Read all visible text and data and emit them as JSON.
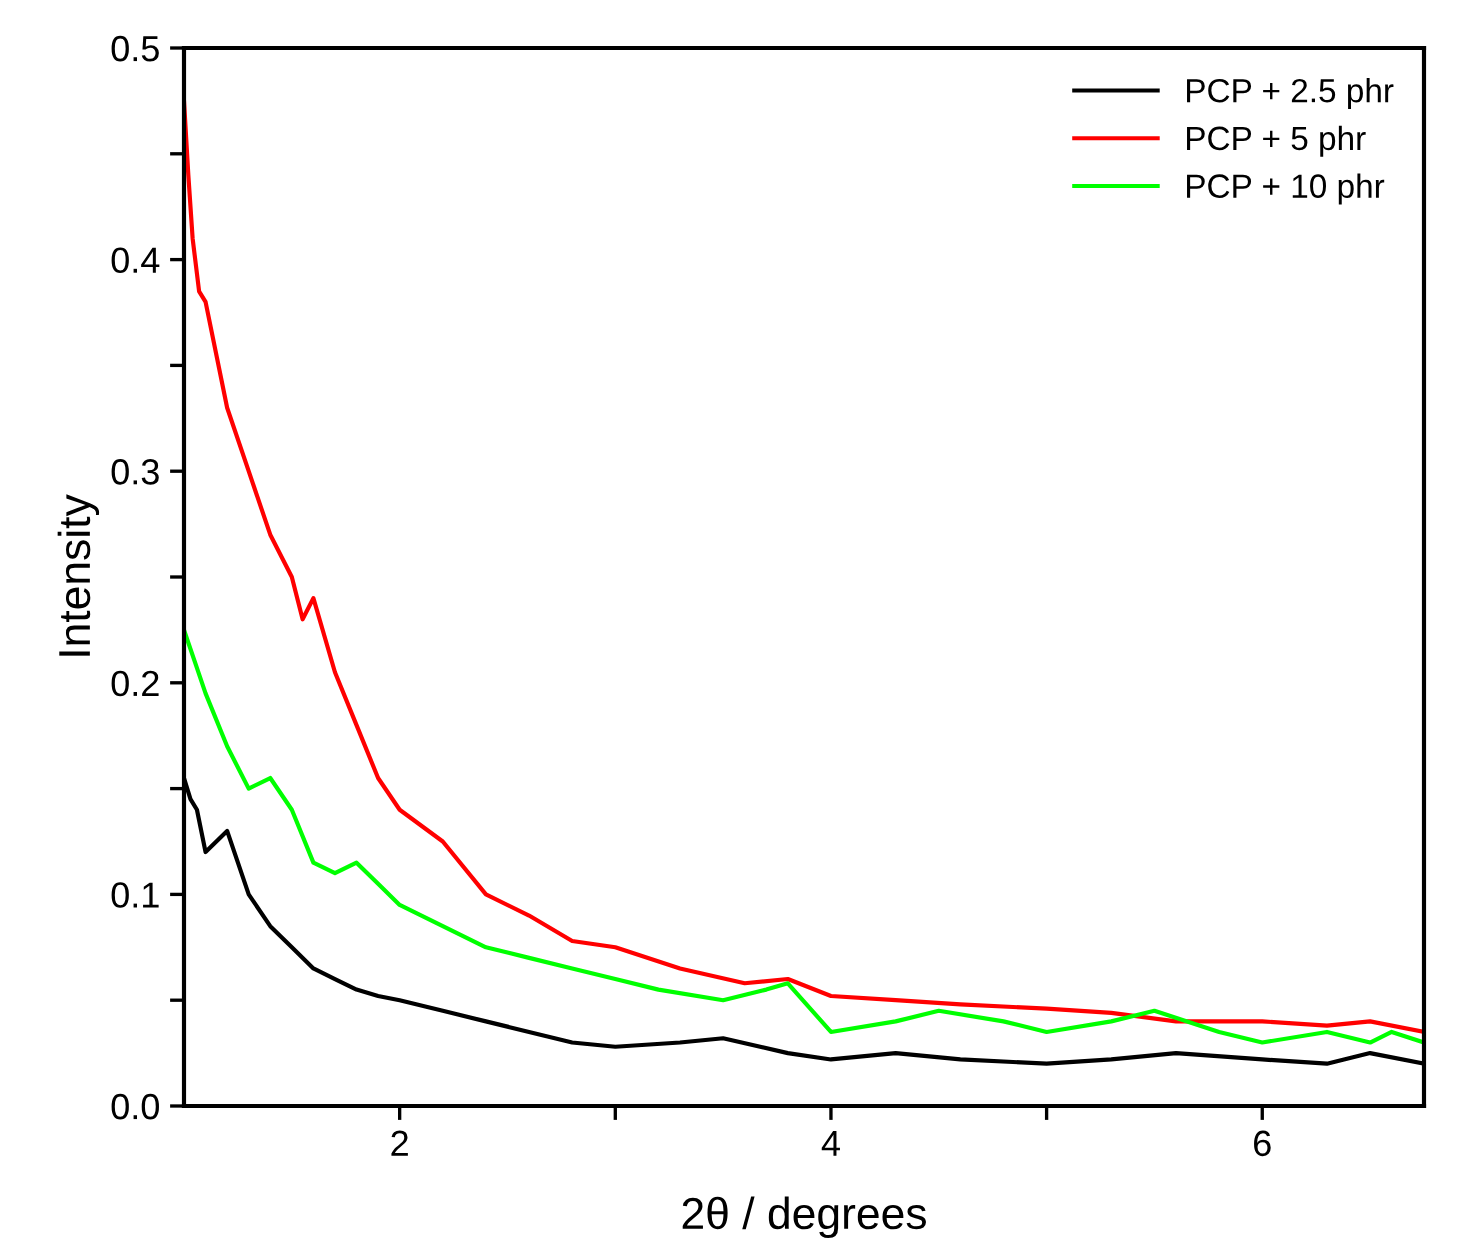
{
  "chart_data": {
    "type": "line",
    "xlabel": "2θ / degrees",
    "ylabel": "Intensity",
    "xlim": [
      1.0,
      6.75
    ],
    "xticks": [
      2,
      {
        "value": 3,
        "label": null
      },
      4,
      {
        "value": 5,
        "label": null
      },
      6
    ],
    "ylim": [
      0,
      0.5
    ],
    "yticks": [
      {
        "value": 0,
        "label": "0.0"
      },
      {
        "value": 0.05,
        "label": null
      },
      {
        "value": 0.1,
        "label": "0.1"
      },
      {
        "value": 0.15,
        "label": null
      },
      {
        "value": 0.2,
        "label": "0.2"
      },
      {
        "value": 0.25,
        "label": null
      },
      {
        "value": 0.3,
        "label": "0.3"
      },
      {
        "value": 0.35,
        "label": null
      },
      {
        "value": 0.4,
        "label": "0.4"
      },
      {
        "value": 0.45,
        "label": null
      },
      {
        "value": 0.5,
        "label": "0.5"
      }
    ],
    "grid": false,
    "legend": "top right",
    "series": [
      {
        "name": "PCP + 2.5 phr",
        "color": "#000000",
        "x": [
          1.0,
          1.03,
          1.06,
          1.1,
          1.2,
          1.3,
          1.4,
          1.5,
          1.6,
          1.7,
          1.8,
          1.9,
          2.0,
          2.2,
          2.4,
          2.6,
          2.8,
          3.0,
          3.3,
          3.5,
          3.8,
          4.0,
          4.3,
          4.6,
          5.0,
          5.3,
          5.6,
          6.0,
          6.3,
          6.5,
          6.75
        ],
        "values": [
          0.155,
          0.145,
          0.14,
          0.12,
          0.13,
          0.1,
          0.085,
          0.075,
          0.065,
          0.06,
          0.055,
          0.052,
          0.05,
          0.045,
          0.04,
          0.035,
          0.03,
          0.028,
          0.03,
          0.032,
          0.025,
          0.022,
          0.025,
          0.022,
          0.02,
          0.022,
          0.025,
          0.022,
          0.02,
          0.025,
          0.02
        ]
      },
      {
        "name": "PCP + 5 phr",
        "color": "#ff0000",
        "x": [
          1.0,
          1.02,
          1.04,
          1.07,
          1.1,
          1.2,
          1.3,
          1.4,
          1.5,
          1.55,
          1.6,
          1.7,
          1.8,
          1.9,
          2.0,
          2.2,
          2.4,
          2.6,
          2.8,
          3.0,
          3.3,
          3.6,
          3.8,
          4.0,
          4.3,
          4.6,
          5.0,
          5.3,
          5.6,
          6.0,
          6.3,
          6.5,
          6.75
        ],
        "values": [
          0.475,
          0.44,
          0.41,
          0.385,
          0.38,
          0.33,
          0.3,
          0.27,
          0.25,
          0.23,
          0.24,
          0.205,
          0.18,
          0.155,
          0.14,
          0.125,
          0.1,
          0.09,
          0.078,
          0.075,
          0.065,
          0.058,
          0.06,
          0.052,
          0.05,
          0.048,
          0.046,
          0.044,
          0.04,
          0.04,
          0.038,
          0.04,
          0.035
        ]
      },
      {
        "name": "PCP + 10 phr",
        "color": "#00ff00",
        "x": [
          1.0,
          1.05,
          1.1,
          1.2,
          1.3,
          1.4,
          1.5,
          1.6,
          1.7,
          1.8,
          1.9,
          2.0,
          2.2,
          2.4,
          2.6,
          2.8,
          3.0,
          3.2,
          3.5,
          3.7,
          3.8,
          4.0,
          4.3,
          4.5,
          4.8,
          5.0,
          5.3,
          5.5,
          5.8,
          6.0,
          6.3,
          6.5,
          6.6,
          6.75
        ],
        "values": [
          0.225,
          0.21,
          0.195,
          0.17,
          0.15,
          0.155,
          0.14,
          0.115,
          0.11,
          0.115,
          0.105,
          0.095,
          0.085,
          0.075,
          0.07,
          0.065,
          0.06,
          0.055,
          0.05,
          0.055,
          0.058,
          0.035,
          0.04,
          0.045,
          0.04,
          0.035,
          0.04,
          0.045,
          0.035,
          0.03,
          0.035,
          0.03,
          0.035,
          0.03
        ]
      }
    ]
  }
}
